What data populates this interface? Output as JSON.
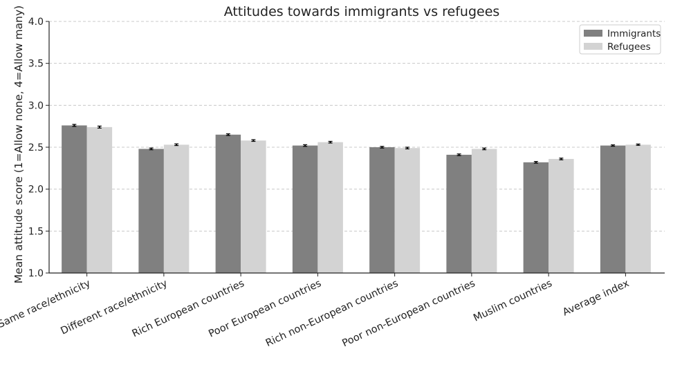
{
  "chart_data": {
    "type": "bar",
    "title": "Attitudes towards immigrants vs refugees",
    "xlabel": "",
    "ylabel": "Mean attitude score (1=Allow none, 4=Allow many)",
    "ylim": [
      1.0,
      4.0
    ],
    "yticks": [
      1.0,
      1.5,
      2.0,
      2.5,
      3.0,
      3.5,
      4.0
    ],
    "ytick_labels": [
      "1.0",
      "1.5",
      "2.0",
      "2.5",
      "3.0",
      "3.5",
      "4.0"
    ],
    "grid": "horizontal dashed",
    "legend_position": "top-right",
    "categories": [
      "Same race/ethnicity",
      "Different race/ethnicity",
      "Rich European countries",
      "Poor European countries",
      "Rich non-European countries",
      "Poor non-European countries",
      "Muslim countries",
      "Average index"
    ],
    "series": [
      {
        "name": "Immigrants",
        "color": "#808080",
        "values": [
          2.76,
          2.48,
          2.65,
          2.52,
          2.5,
          2.41,
          2.32,
          2.52
        ],
        "errors": [
          0.012,
          0.01,
          0.01,
          0.01,
          0.01,
          0.01,
          0.01,
          0.008
        ]
      },
      {
        "name": "Refugees",
        "color": "#d3d3d3",
        "values": [
          2.74,
          2.53,
          2.58,
          2.56,
          2.49,
          2.48,
          2.36,
          2.53
        ],
        "errors": [
          0.012,
          0.01,
          0.01,
          0.01,
          0.01,
          0.01,
          0.01,
          0.008
        ]
      }
    ]
  }
}
